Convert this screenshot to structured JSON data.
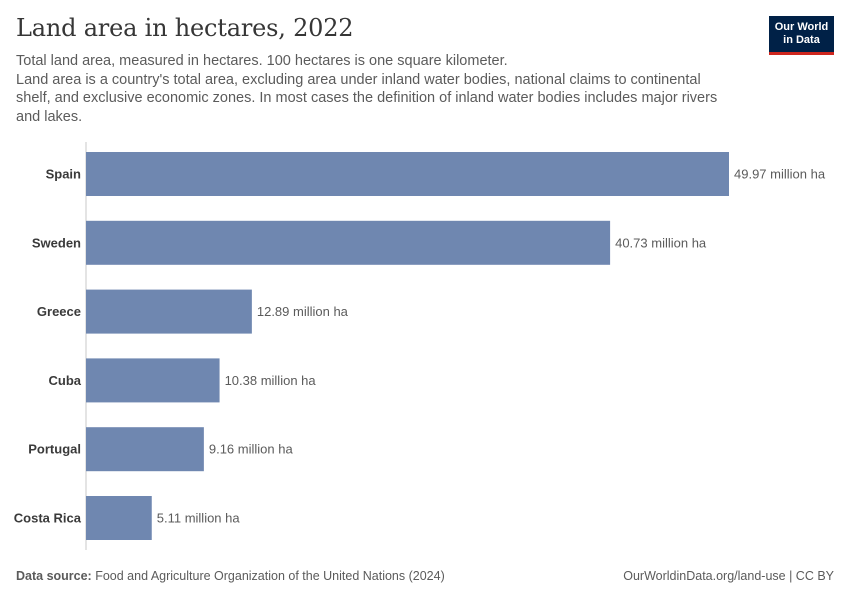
{
  "header": {
    "title": "Land area in hectares, 2022",
    "subtitle_line1": "Total land area, measured in hectares. 100 hectares is one square kilometer.",
    "subtitle_line2": "Land area is a country's total area, excluding area under inland water bodies, national claims to continental shelf, and exclusive economic zones. In most cases the definition of inland water bodies includes major rivers and lakes."
  },
  "logo": {
    "line1": "Our World",
    "line2": "in Data"
  },
  "footer": {
    "source_label": "Data source:",
    "source_text": "Food and Agriculture Organization of the United Nations (2024)",
    "attribution": "OurWorldinData.org/land-use | CC BY"
  },
  "colors": {
    "bar": "#6f87b0",
    "logo_bg": "#002147",
    "logo_accent": "#ce261e"
  },
  "chart_data": {
    "type": "bar",
    "orientation": "horizontal",
    "title": "Land area in hectares, 2022",
    "categories": [
      "Spain",
      "Sweden",
      "Greece",
      "Cuba",
      "Portugal",
      "Costa Rica"
    ],
    "values": [
      49.97,
      40.73,
      12.89,
      10.38,
      9.16,
      5.11
    ],
    "value_labels": [
      "49.97 million ha",
      "40.73 million ha",
      "12.89 million ha",
      "10.38 million ha",
      "9.16 million ha",
      "5.11 million ha"
    ],
    "unit": "million ha",
    "xlim": [
      0,
      49.97
    ],
    "xlabel": "",
    "ylabel": "",
    "grid": false
  }
}
